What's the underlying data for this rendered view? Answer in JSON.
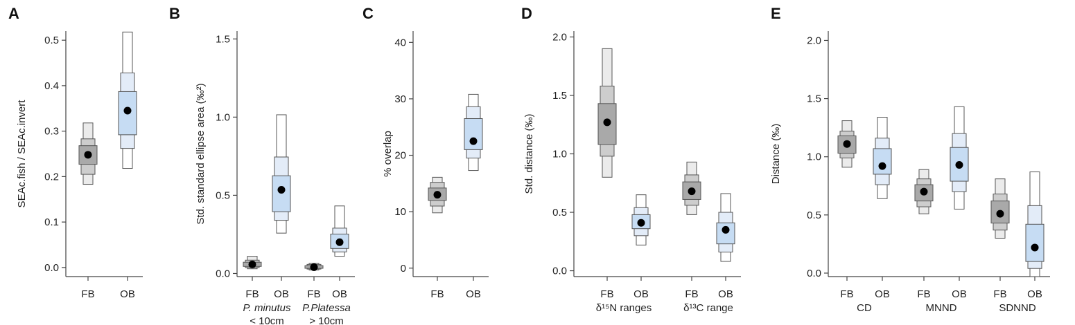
{
  "colors": {
    "fb": [
      "#ebebeb",
      "#cdcdcd",
      "#a9a9a9"
    ],
    "ob": [
      "#ffffff",
      "#e3ecf8",
      "#c6dcf3"
    ],
    "outline": "#555555",
    "point": "#000000"
  },
  "chart_data": [
    {
      "type": "box",
      "panel_label": "A",
      "ylabel": "SEAc.fish / SEAc.invert",
      "ylim": [
        -0.02,
        0.52
      ],
      "yticks": [
        "0.0",
        "0.1",
        "0.2",
        "0.3",
        "0.4",
        "0.5"
      ],
      "categories": [
        "FB",
        "OB"
      ],
      "groups": [],
      "series": [
        {
          "cat": "FB",
          "kind": "fb",
          "mode": 0.248,
          "ci50": [
            0.227,
            0.268
          ],
          "ci75": [
            0.205,
            0.283
          ],
          "ci95": [
            0.183,
            0.318
          ]
        },
        {
          "cat": "OB",
          "kind": "ob",
          "mode": 0.345,
          "ci50": [
            0.292,
            0.387
          ],
          "ci75": [
            0.262,
            0.428
          ],
          "ci95": [
            0.218,
            0.518
          ]
        }
      ]
    },
    {
      "type": "box",
      "panel_label": "B",
      "ylabel": "Std. standard ellipse area (‰²)",
      "ylim": [
        -0.02,
        1.55
      ],
      "yticks": [
        "0.0",
        "0.5",
        "1.0",
        "1.5"
      ],
      "categories": [
        "FB",
        "OB",
        "FB",
        "OB"
      ],
      "groups": [
        {
          "line1": "P. minutus",
          "line2": "< 10cm",
          "italic": true
        },
        {
          "line1": "P.Platessa",
          "line2": "> 10cm",
          "italic": true
        }
      ],
      "series": [
        {
          "cat": "FB",
          "kind": "fb",
          "mode": 0.058,
          "ci50": [
            0.045,
            0.072
          ],
          "ci75": [
            0.038,
            0.085
          ],
          "ci95": [
            0.03,
            0.11
          ]
        },
        {
          "cat": "OB",
          "kind": "ob",
          "mode": 0.535,
          "ci50": [
            0.395,
            0.625
          ],
          "ci75": [
            0.34,
            0.745
          ],
          "ci95": [
            0.258,
            1.015
          ]
        },
        {
          "cat": "FB",
          "kind": "fb",
          "mode": 0.04,
          "ci50": [
            0.033,
            0.05
          ],
          "ci75": [
            0.028,
            0.058
          ],
          "ci95": [
            0.022,
            0.065
          ]
        },
        {
          "cat": "OB",
          "kind": "ob",
          "mode": 0.2,
          "ci50": [
            0.16,
            0.252
          ],
          "ci75": [
            0.138,
            0.29
          ],
          "ci95": [
            0.11,
            0.432
          ]
        }
      ]
    },
    {
      "type": "box",
      "panel_label": "C",
      "ylabel": "% overlap",
      "ylim": [
        -1.5,
        42
      ],
      "yticks": [
        "0",
        "10",
        "20",
        "30",
        "40"
      ],
      "categories": [
        "FB",
        "OB"
      ],
      "groups": [],
      "series": [
        {
          "cat": "FB",
          "kind": "fb",
          "mode": 13.0,
          "ci50": [
            12.0,
            14.2
          ],
          "ci75": [
            11.0,
            15.2
          ],
          "ci95": [
            9.8,
            16.1
          ]
        },
        {
          "cat": "OB",
          "kind": "ob",
          "mode": 22.5,
          "ci50": [
            21.0,
            26.5
          ],
          "ci75": [
            19.5,
            28.6
          ],
          "ci95": [
            17.3,
            30.8
          ]
        }
      ]
    },
    {
      "type": "box",
      "panel_label": "D",
      "ylabel": "Std. distance (‰)",
      "ylim": [
        -0.05,
        2.05
      ],
      "yticks": [
        "0.0",
        "0.5",
        "1.0",
        "1.5",
        "2.0"
      ],
      "categories": [
        "FB",
        "OB",
        "FB",
        "OB"
      ],
      "groups": [
        {
          "line1": "δ¹⁵N ranges",
          "line2": "",
          "italic": false
        },
        {
          "line1": "δ¹³C range",
          "line2": "",
          "italic": false
        }
      ],
      "series": [
        {
          "cat": "FB",
          "kind": "fb",
          "mode": 1.27,
          "ci50": [
            1.08,
            1.43
          ],
          "ci75": [
            0.98,
            1.58
          ],
          "ci95": [
            0.8,
            1.9
          ]
        },
        {
          "cat": "OB",
          "kind": "ob",
          "mode": 0.41,
          "ci50": [
            0.36,
            0.48
          ],
          "ci75": [
            0.3,
            0.54
          ],
          "ci95": [
            0.22,
            0.65
          ]
        },
        {
          "cat": "FB",
          "kind": "fb",
          "mode": 0.68,
          "ci50": [
            0.61,
            0.76
          ],
          "ci75": [
            0.56,
            0.82
          ],
          "ci95": [
            0.48,
            0.93
          ]
        },
        {
          "cat": "OB",
          "kind": "ob",
          "mode": 0.35,
          "ci50": [
            0.23,
            0.41
          ],
          "ci75": [
            0.16,
            0.5
          ],
          "ci95": [
            0.08,
            0.66
          ]
        }
      ]
    },
    {
      "type": "box",
      "panel_label": "E",
      "ylabel": "Distance (‰)",
      "ylim": [
        -0.03,
        2.08
      ],
      "yticks": [
        "0.0",
        "0.5",
        "1.0",
        "1.5",
        "2.0"
      ],
      "categories": [
        "FB",
        "OB",
        "FB",
        "OB",
        "FB",
        "OB"
      ],
      "groups": [
        {
          "line1": "CD",
          "line2": "",
          "italic": false
        },
        {
          "line1": "MNND",
          "line2": "",
          "italic": false
        },
        {
          "line1": "SDNND",
          "line2": "",
          "italic": false
        }
      ],
      "series": [
        {
          "cat": "FB",
          "kind": "fb",
          "mode": 1.11,
          "ci50": [
            1.03,
            1.18
          ],
          "ci75": [
            0.99,
            1.22
          ],
          "ci95": [
            0.91,
            1.31
          ]
        },
        {
          "cat": "OB",
          "kind": "ob",
          "mode": 0.92,
          "ci50": [
            0.85,
            1.07
          ],
          "ci75": [
            0.76,
            1.16
          ],
          "ci95": [
            0.64,
            1.34
          ]
        },
        {
          "cat": "FB",
          "kind": "fb",
          "mode": 0.7,
          "ci50": [
            0.62,
            0.76
          ],
          "ci75": [
            0.57,
            0.81
          ],
          "ci95": [
            0.51,
            0.89
          ]
        },
        {
          "cat": "OB",
          "kind": "ob",
          "mode": 0.93,
          "ci50": [
            0.79,
            1.08
          ],
          "ci75": [
            0.7,
            1.2
          ],
          "ci95": [
            0.55,
            1.43
          ]
        },
        {
          "cat": "FB",
          "kind": "fb",
          "mode": 0.51,
          "ci50": [
            0.43,
            0.62
          ],
          "ci75": [
            0.37,
            0.68
          ],
          "ci95": [
            0.3,
            0.81
          ]
        },
        {
          "cat": "OB",
          "kind": "ob",
          "mode": 0.22,
          "ci50": [
            0.1,
            0.42
          ],
          "ci75": [
            0.04,
            0.58
          ],
          "ci95": [
            -0.03,
            0.87
          ]
        }
      ]
    }
  ]
}
